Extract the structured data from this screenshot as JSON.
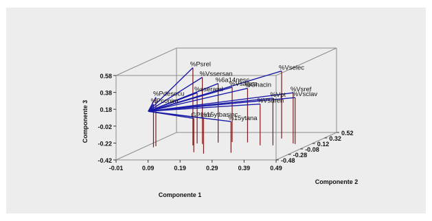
{
  "chart_data": {
    "type": "scatter",
    "subtype": "3d-biplot",
    "title": "",
    "xlabel": "Componente 1",
    "ylabel": "Componente 2",
    "zlabel": "Componente 3",
    "x_ticks": [
      "-0.01",
      "0.09",
      "0.19",
      "0.29",
      "0.39",
      "0.49"
    ],
    "y_ticks": [
      "-0.48",
      "-0.28",
      "-0.08",
      "0.12",
      "0.32",
      "0.52"
    ],
    "z_ticks": [
      "-0.42",
      "-0.22",
      "-0.02",
      "0.18",
      "0.38",
      "0.58"
    ],
    "xlim": [
      -0.01,
      0.49
    ],
    "ylim": [
      -0.48,
      0.52
    ],
    "zlim": [
      -0.42,
      0.58
    ],
    "vectors": [
      {
        "name": "%Psrel",
        "x": 0.13,
        "y": 0.05,
        "z": 0.5
      },
      {
        "name": "%Vssersan",
        "x": 0.15,
        "y": 0.1,
        "z": 0.37
      },
      {
        "name": "%6a14nesc",
        "x": 0.19,
        "y": 0.15,
        "z": 0.28
      },
      {
        "name": "%Vsagua",
        "x": 0.23,
        "y": 0.17,
        "z": 0.23
      },
      {
        "name": "%Ghacin",
        "x": 0.28,
        "y": 0.16,
        "z": 0.22
      },
      {
        "name": "%Vselec",
        "x": 0.36,
        "y": 0.3,
        "z": 0.38
      },
      {
        "name": "%sseraml",
        "x": 0.13,
        "y": 0.12,
        "z": 0.18
      },
      {
        "name": "%Pdesocu",
        "x": 0.02,
        "y": 0.02,
        "z": 0.16
      },
      {
        "name": "%Pconim",
        "x": 0.02,
        "y": -0.02,
        "z": 0.09
      },
      {
        "name": "%Vsref",
        "x": 0.43,
        "y": 0.12,
        "z": 0.18
      },
      {
        "name": "%Vpt",
        "x": 0.38,
        "y": 0.05,
        "z": 0.14
      },
      {
        "name": "%Vsclav",
        "x": 0.44,
        "y": 0.1,
        "z": 0.13
      },
      {
        "name": "%Vsdren",
        "x": 0.34,
        "y": 0.05,
        "z": 0.07
      },
      {
        "name": "%15ytbasinc",
        "x": 0.22,
        "y": -0.25,
        "z": 0.0
      },
      {
        "name": "%15ytana",
        "x": 0.3,
        "y": -0.22,
        "z": -0.05
      },
      {
        "name": "GPLim",
        "x": 0.18,
        "y": -0.2,
        "z": -0.02
      }
    ],
    "colors": {
      "vector": "#1a1aa8",
      "drop_line": "#7a1a1a",
      "box": "#8c8c8c",
      "panel": "#ededed",
      "page": "#ffffff"
    },
    "grid": false,
    "legend": "none"
  }
}
